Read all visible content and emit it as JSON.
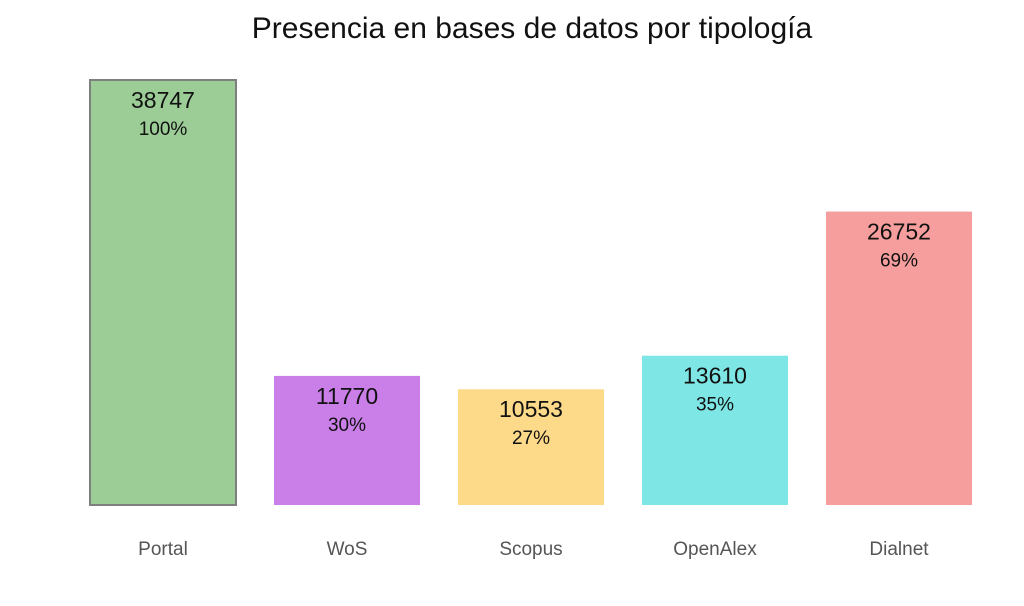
{
  "chart_data": {
    "type": "bar",
    "title": "Presencia en bases de datos por tipología",
    "xlabel": "",
    "ylabel": "",
    "categories": [
      "Portal",
      "WoS",
      "Scopus",
      "OpenAlex",
      "Dialnet"
    ],
    "values": [
      38747,
      11770,
      10553,
      13610,
      26752
    ],
    "percent_labels": [
      "100%",
      "30%",
      "27%",
      "35%",
      "69%"
    ],
    "colors": [
      "#9ccd96",
      "#c97ee8",
      "#fdd98a",
      "#7ee6e4",
      "#f59e9d"
    ],
    "highlight_outline": "#7f7f7f",
    "ylim": [
      0,
      38747
    ],
    "grid": false,
    "legend": "none"
  }
}
